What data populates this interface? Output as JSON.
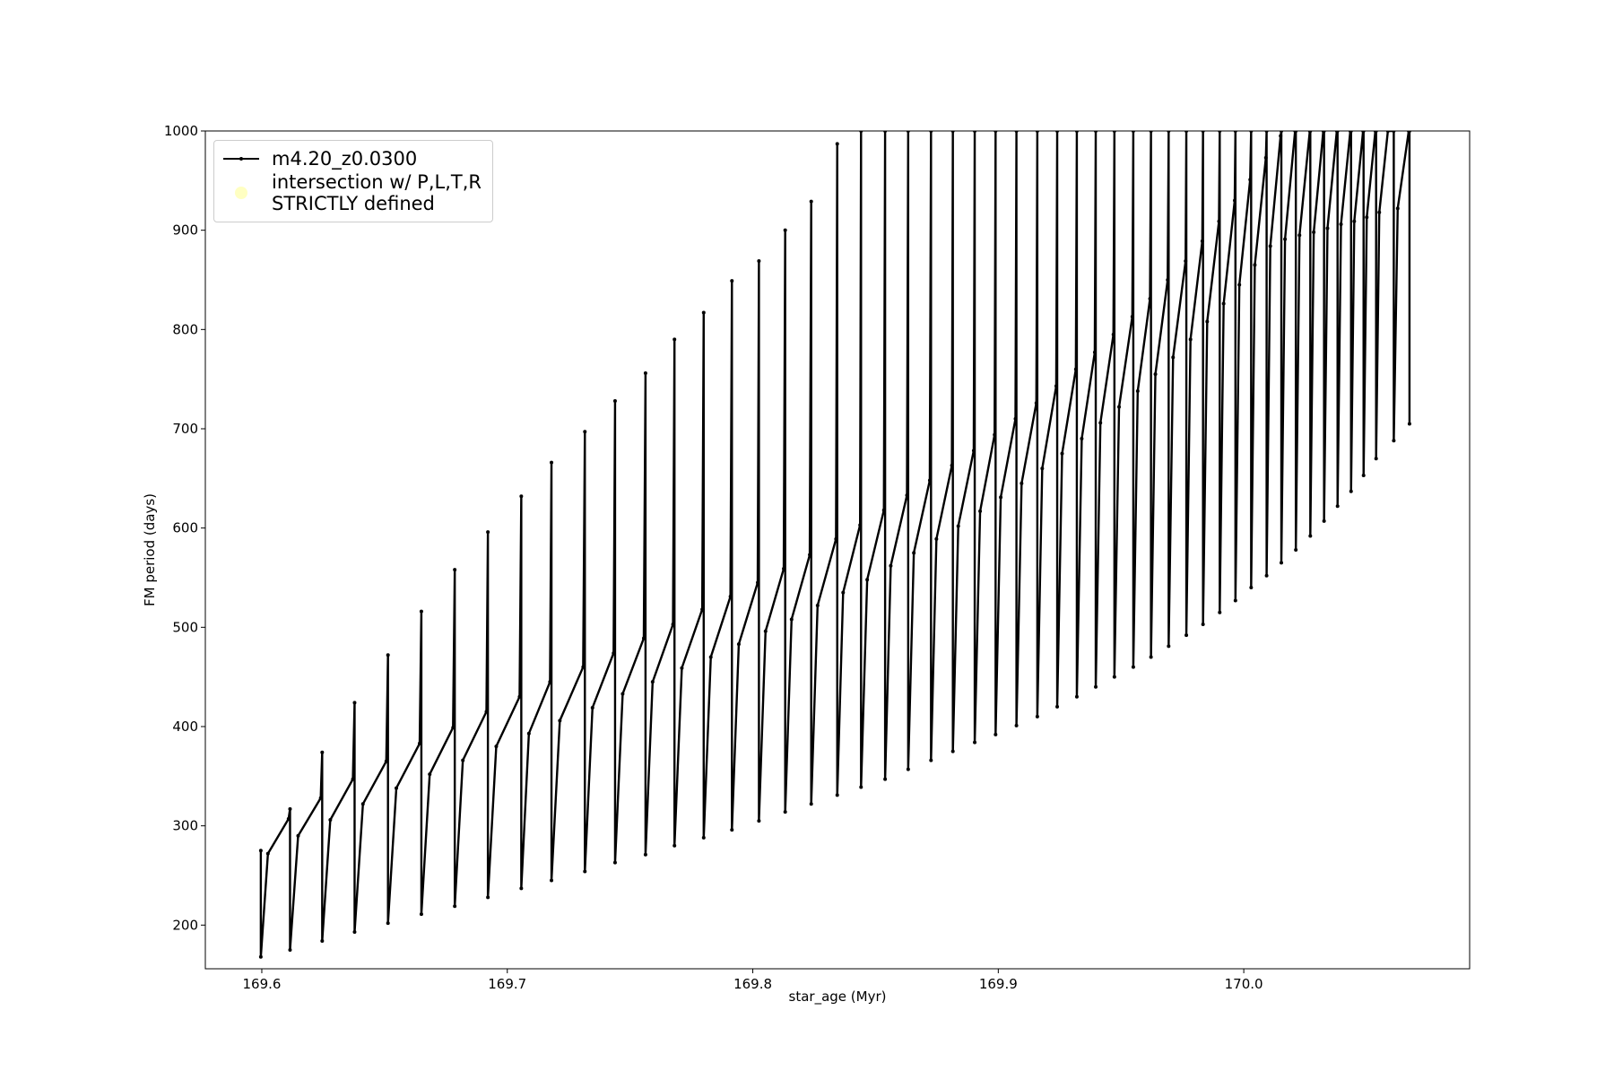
{
  "chart_data": {
    "type": "line",
    "xlabel": "star_age (Myr)",
    "ylabel": "FM period (days)",
    "xlim": [
      169.577,
      170.092
    ],
    "ylim": [
      156,
      1000
    ],
    "xticks": [
      169.6,
      169.7,
      169.8,
      169.9,
      {
        "value": 170,
        "label": "170.0"
      }
    ],
    "yticks": [
      200,
      300,
      400,
      500,
      600,
      700,
      800,
      900,
      1000
    ],
    "grid": false,
    "legend": "upper left",
    "series": [
      {
        "name": "m4.20_z0.0300",
        "color": "#000000",
        "x": [
          169.5996,
          169.5996,
          169.6025,
          169.6109,
          169.6115,
          169.6115,
          169.6148,
          169.624,
          169.6246,
          169.6246,
          169.6279,
          169.6371,
          169.6378,
          169.6378,
          169.6412,
          169.6507,
          169.6514,
          169.6514,
          169.6548,
          169.6643,
          169.665,
          169.665,
          169.6684,
          169.6779,
          169.6786,
          169.6786,
          169.6819,
          169.6915,
          169.6921,
          169.6921,
          169.6955,
          169.705,
          169.7057,
          169.7057,
          169.7088,
          169.7174,
          169.718,
          169.718,
          169.7214,
          169.7309,
          169.7316,
          169.7316,
          169.7347,
          169.7433,
          169.7439,
          169.7439,
          169.747,
          169.7556,
          169.7563,
          169.7563,
          169.7592,
          169.7675,
          169.7681,
          169.7681,
          169.7711,
          169.7794,
          169.78,
          169.78,
          169.7829,
          169.7909,
          169.7915,
          169.7915,
          169.7943,
          169.802,
          169.8025,
          169.8025,
          169.8052,
          169.8126,
          169.8132,
          169.8132,
          169.8158,
          169.8232,
          169.8238,
          169.8238,
          169.8264,
          169.8339,
          169.8344,
          169.8344,
          169.8368,
          169.8437,
          169.8441,
          169.8441,
          169.8466,
          169.8534,
          169.8539,
          169.8539,
          169.8562,
          169.8628,
          169.8633,
          169.8633,
          169.8656,
          169.8721,
          169.8726,
          169.8726,
          169.8748,
          169.8811,
          169.8815,
          169.8815,
          169.8837,
          169.89,
          169.8904,
          169.8904,
          169.8926,
          169.8985,
          169.8989,
          169.8989,
          169.901,
          169.907,
          169.9074,
          169.9074,
          169.9095,
          169.9155,
          169.9159,
          169.9159,
          169.9179,
          169.9236,
          169.924,
          169.924,
          169.926,
          169.9316,
          169.932,
          169.932,
          169.934,
          169.9393,
          169.9397,
          169.9397,
          169.9416,
          169.9469,
          169.9473,
          169.9473,
          169.9492,
          169.9546,
          169.955,
          169.955,
          169.9568,
          169.9618,
          169.9622,
          169.9622,
          169.964,
          169.969,
          169.9694,
          169.9694,
          169.9712,
          169.9763,
          169.9766,
          169.9766,
          169.9783,
          169.9831,
          169.9834,
          169.9834,
          169.9851,
          169.9899,
          169.9902,
          169.9902,
          169.9918,
          169.9963,
          169.9966,
          169.9966,
          169.9982,
          170.0026,
          170.003,
          170.003,
          170.0045,
          170.009,
          170.0093,
          170.0093,
          170.0108,
          170.015,
          170.0153,
          170.0153,
          170.0168,
          170.0209,
          170.0212,
          170.0212,
          170.0227,
          170.0269,
          170.0271,
          170.0271,
          170.0285,
          170.0324,
          170.0327,
          170.0327,
          170.0341,
          170.0379,
          170.0382,
          170.0382,
          170.0396,
          170.0434,
          170.0437,
          170.0437,
          170.045,
          170.0486,
          170.0488,
          170.0488,
          170.0501,
          170.0536,
          170.0539,
          170.0539,
          170.0552,
          170.0587,
          170.0611,
          170.0611,
          170.0627,
          170.0672,
          170.0675,
          170.0675
        ],
        "values": [
          275,
          168,
          272,
          307,
          317,
          175,
          290,
          328,
          374,
          184,
          306,
          347,
          424,
          193,
          322,
          365,
          472,
          202,
          338,
          383,
          516,
          211,
          352,
          399,
          558,
          219,
          366,
          415,
          596,
          228,
          380,
          430,
          632,
          237,
          393,
          445,
          666,
          245,
          406,
          460,
          697,
          254,
          419,
          474,
          728,
          263,
          433,
          489,
          756,
          271,
          445,
          503,
          790,
          280,
          459,
          518,
          817,
          288,
          470,
          531,
          849,
          296,
          483,
          545,
          869,
          305,
          496,
          559,
          900,
          314,
          508,
          573,
          929,
          322,
          522,
          589,
          987,
          331,
          535,
          603,
          1000,
          339,
          548,
          618,
          1000,
          347,
          562,
          633,
          1000,
          357,
          575,
          648,
          1000,
          366,
          589,
          663,
          1000,
          375,
          602,
          678,
          1000,
          384,
          617,
          694,
          1000,
          392,
          631,
          710,
          1000,
          401,
          645,
          726,
          1000,
          410,
          660,
          743,
          1000,
          420,
          675,
          760,
          1000,
          430,
          690,
          777,
          1000,
          440,
          706,
          795,
          1000,
          450,
          722,
          813,
          1000,
          460,
          738,
          831,
          1000,
          470,
          755,
          850,
          1000,
          481,
          772,
          869,
          1000,
          492,
          790,
          889,
          1000,
          503,
          808,
          909,
          1000,
          515,
          826,
          930,
          1000,
          527,
          845,
          951,
          1000,
          540,
          865,
          973,
          1000,
          552,
          884,
          995,
          1000,
          565,
          891,
          1000,
          1000,
          578,
          895,
          1000,
          1000,
          592,
          898,
          1000,
          1000,
          607,
          902,
          1000,
          1000,
          622,
          906,
          1000,
          1000,
          637,
          909,
          1000,
          1000,
          653,
          913,
          1000,
          1000,
          670,
          918,
          1000,
          1000,
          688,
          922,
          1000,
          1000,
          705
        ]
      },
      {
        "name": "intersection w/ P,L,T,R\nSTRICTLY defined",
        "color": "#ffff99",
        "x": [],
        "values": []
      }
    ]
  }
}
